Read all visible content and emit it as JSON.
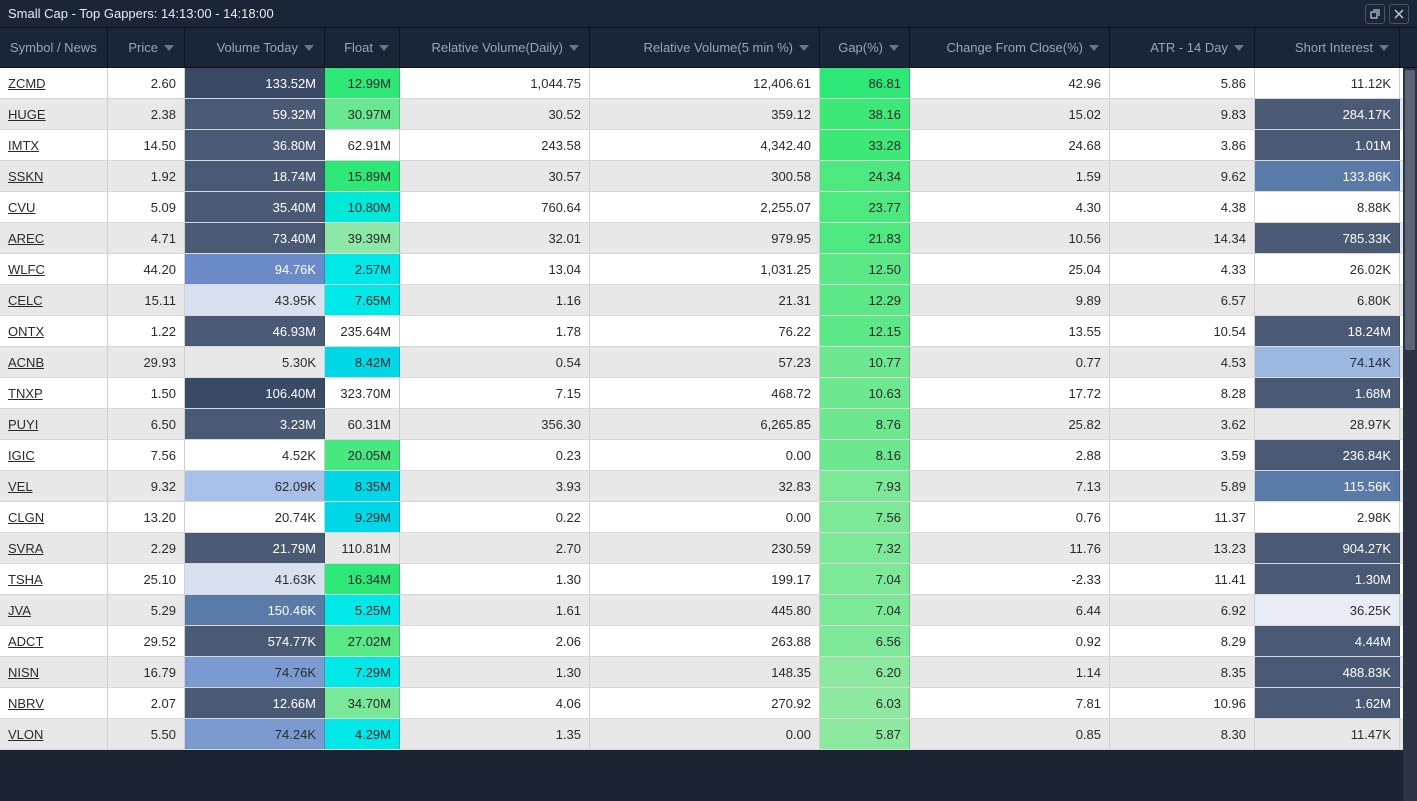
{
  "window": {
    "title": "Small Cap - Top Gappers: 14:13:00 - 14:18:00"
  },
  "columns": [
    {
      "key": "symbol",
      "label": "Symbol / News",
      "class": "col-symbol",
      "sortable": false
    },
    {
      "key": "price",
      "label": "Price",
      "class": "col-price",
      "sortable": true
    },
    {
      "key": "volume",
      "label": "Volume Today",
      "class": "col-volume",
      "sortable": true
    },
    {
      "key": "float",
      "label": "Float",
      "class": "col-float",
      "sortable": true
    },
    {
      "key": "relvol_daily",
      "label": "Relative Volume(Daily)",
      "class": "col-relvol-daily",
      "sortable": true
    },
    {
      "key": "relvol_5min",
      "label": "Relative Volume(5 min %)",
      "class": "col-relvol-5min",
      "sortable": true
    },
    {
      "key": "gap",
      "label": "Gap(%)",
      "class": "col-gap",
      "sortable": true
    },
    {
      "key": "change",
      "label": "Change From Close(%)",
      "class": "col-change",
      "sortable": true
    },
    {
      "key": "atr",
      "label": "ATR - 14 Day",
      "class": "col-atr",
      "sortable": true
    },
    {
      "key": "short",
      "label": "Short Interest",
      "class": "col-short",
      "sortable": true
    }
  ],
  "rows": [
    {
      "symbol": "ZCMD",
      "price": "2.60",
      "volume": "133.52M",
      "volume_bg": "#3a4a64",
      "float": "12.99M",
      "float_bg": "#2de876",
      "relvol_daily": "1,044.75",
      "relvol_5min": "12,406.61",
      "gap": "86.81",
      "gap_bg": "#2de876",
      "change": "42.96",
      "atr": "5.86",
      "short": "11.12K",
      "short_bg": ""
    },
    {
      "symbol": "HUGE",
      "price": "2.38",
      "volume": "59.32M",
      "volume_bg": "#4a5a74",
      "float": "30.97M",
      "float_bg": "#68e890",
      "relvol_daily": "30.52",
      "relvol_5min": "359.12",
      "gap": "38.16",
      "gap_bg": "#3de876",
      "change": "15.02",
      "atr": "9.83",
      "short": "284.17K",
      "short_bg": "#4a5a74"
    },
    {
      "symbol": "IMTX",
      "price": "14.50",
      "volume": "36.80M",
      "volume_bg": "#4a5a74",
      "float": "62.91M",
      "float_bg": "",
      "relvol_daily": "243.58",
      "relvol_5min": "4,342.40",
      "gap": "33.28",
      "gap_bg": "#3de876",
      "change": "24.68",
      "atr": "3.86",
      "short": "1.01M",
      "short_bg": "#4a5a74"
    },
    {
      "symbol": "SSKN",
      "price": "1.92",
      "volume": "18.74M",
      "volume_bg": "#4a5a74",
      "float": "15.89M",
      "float_bg": "#2de876",
      "relvol_daily": "30.57",
      "relvol_5min": "300.58",
      "gap": "24.34",
      "gap_bg": "#4de880",
      "change": "1.59",
      "atr": "9.62",
      "short": "133.86K",
      "short_bg": "#5a7aa8"
    },
    {
      "symbol": "CVU",
      "price": "5.09",
      "volume": "35.40M",
      "volume_bg": "#4a5a74",
      "float": "10.80M",
      "float_bg": "#00e8d8",
      "relvol_daily": "760.64",
      "relvol_5min": "2,255.07",
      "gap": "23.77",
      "gap_bg": "#4de880",
      "change": "4.30",
      "atr": "4.38",
      "short": "8.88K",
      "short_bg": ""
    },
    {
      "symbol": "AREC",
      "price": "4.71",
      "volume": "73.40M",
      "volume_bg": "#4a5a74",
      "float": "39.39M",
      "float_bg": "#8de8a8",
      "relvol_daily": "32.01",
      "relvol_5min": "979.95",
      "gap": "21.83",
      "gap_bg": "#4de880",
      "change": "10.56",
      "atr": "14.34",
      "short": "785.33K",
      "short_bg": "#4a5a74"
    },
    {
      "symbol": "WLFC",
      "price": "44.20",
      "volume": "94.76K",
      "volume_bg": "#6a8ac8",
      "float": "2.57M",
      "float_bg": "#00e8e8",
      "relvol_daily": "13.04",
      "relvol_5min": "1,031.25",
      "gap": "12.50",
      "gap_bg": "#5de888",
      "change": "25.04",
      "atr": "4.33",
      "short": "26.02K",
      "short_bg": ""
    },
    {
      "symbol": "CELC",
      "price": "15.11",
      "volume": "43.95K",
      "volume_bg": "#d8e0f0",
      "float": "7.65M",
      "float_bg": "#00e8e8",
      "relvol_daily": "1.16",
      "relvol_5min": "21.31",
      "gap": "12.29",
      "gap_bg": "#5de888",
      "change": "9.89",
      "atr": "6.57",
      "short": "6.80K",
      "short_bg": ""
    },
    {
      "symbol": "ONTX",
      "price": "1.22",
      "volume": "46.93M",
      "volume_bg": "#4a5a74",
      "float": "235.64M",
      "float_bg": "",
      "relvol_daily": "1.78",
      "relvol_5min": "76.22",
      "gap": "12.15",
      "gap_bg": "#5de888",
      "change": "13.55",
      "atr": "10.54",
      "short": "18.24M",
      "short_bg": "#4a5a74"
    },
    {
      "symbol": "ACNB",
      "price": "29.93",
      "volume": "5.30K",
      "volume_bg": "",
      "float": "8.42M",
      "float_bg": "#00d8e8",
      "relvol_daily": "0.54",
      "relvol_5min": "57.23",
      "gap": "10.77",
      "gap_bg": "#6de890",
      "change": "0.77",
      "atr": "4.53",
      "short": "74.14K",
      "short_bg": "#9ab8e0"
    },
    {
      "symbol": "TNXP",
      "price": "1.50",
      "volume": "106.40M",
      "volume_bg": "#3a4a64",
      "float": "323.70M",
      "float_bg": "",
      "relvol_daily": "7.15",
      "relvol_5min": "468.72",
      "gap": "10.63",
      "gap_bg": "#6de890",
      "change": "17.72",
      "atr": "8.28",
      "short": "1.68M",
      "short_bg": "#4a5a74"
    },
    {
      "symbol": "PUYI",
      "price": "6.50",
      "volume": "3.23M",
      "volume_bg": "#4a5a74",
      "float": "60.31M",
      "float_bg": "",
      "relvol_daily": "356.30",
      "relvol_5min": "6,265.85",
      "gap": "8.76",
      "gap_bg": "#6de890",
      "change": "25.82",
      "atr": "3.62",
      "short": "28.97K",
      "short_bg": ""
    },
    {
      "symbol": "IGIC",
      "price": "7.56",
      "volume": "4.52K",
      "volume_bg": "",
      "float": "20.05M",
      "float_bg": "#48e880",
      "relvol_daily": "0.23",
      "relvol_5min": "0.00",
      "gap": "8.16",
      "gap_bg": "#6de890",
      "change": "2.88",
      "atr": "3.59",
      "short": "236.84K",
      "short_bg": "#4a5a74"
    },
    {
      "symbol": "VEL",
      "price": "9.32",
      "volume": "62.09K",
      "volume_bg": "#a8c0e8",
      "float": "8.35M",
      "float_bg": "#00d8e8",
      "relvol_daily": "3.93",
      "relvol_5min": "32.83",
      "gap": "7.93",
      "gap_bg": "#7de898",
      "change": "7.13",
      "atr": "5.89",
      "short": "115.56K",
      "short_bg": "#5a7aa8"
    },
    {
      "symbol": "CLGN",
      "price": "13.20",
      "volume": "20.74K",
      "volume_bg": "",
      "float": "9.29M",
      "float_bg": "#00d8e8",
      "relvol_daily": "0.22",
      "relvol_5min": "0.00",
      "gap": "7.56",
      "gap_bg": "#7de898",
      "change": "0.76",
      "atr": "11.37",
      "short": "2.98K",
      "short_bg": ""
    },
    {
      "symbol": "SVRA",
      "price": "2.29",
      "volume": "21.79M",
      "volume_bg": "#4a5a74",
      "float": "110.81M",
      "float_bg": "",
      "relvol_daily": "2.70",
      "relvol_5min": "230.59",
      "gap": "7.32",
      "gap_bg": "#7de898",
      "change": "11.76",
      "atr": "13.23",
      "short": "904.27K",
      "short_bg": "#4a5a74"
    },
    {
      "symbol": "TSHA",
      "price": "25.10",
      "volume": "41.63K",
      "volume_bg": "#d8e0f0",
      "float": "16.34M",
      "float_bg": "#2de876",
      "relvol_daily": "1.30",
      "relvol_5min": "199.17",
      "gap": "7.04",
      "gap_bg": "#7de898",
      "change": "-2.33",
      "atr": "11.41",
      "short": "1.30M",
      "short_bg": "#4a5a74"
    },
    {
      "symbol": "JVA",
      "price": "5.29",
      "volume": "150.46K",
      "volume_bg": "#5a7aa8",
      "float": "5.25M",
      "float_bg": "#00e8e8",
      "relvol_daily": "1.61",
      "relvol_5min": "445.80",
      "gap": "7.04",
      "gap_bg": "#7de898",
      "change": "6.44",
      "atr": "6.92",
      "short": "36.25K",
      "short_bg": "#e8ecf4"
    },
    {
      "symbol": "ADCT",
      "price": "29.52",
      "volume": "574.77K",
      "volume_bg": "#4a5a74",
      "float": "27.02M",
      "float_bg": "#58e888",
      "relvol_daily": "2.06",
      "relvol_5min": "263.88",
      "gap": "6.56",
      "gap_bg": "#7de898",
      "change": "0.92",
      "atr": "8.29",
      "short": "4.44M",
      "short_bg": "#4a5a74"
    },
    {
      "symbol": "NISN",
      "price": "16.79",
      "volume": "74.76K",
      "volume_bg": "#7a9ad0",
      "float": "7.29M",
      "float_bg": "#00e8e8",
      "relvol_daily": "1.30",
      "relvol_5min": "148.35",
      "gap": "6.20",
      "gap_bg": "#8de8a0",
      "change": "1.14",
      "atr": "8.35",
      "short": "488.83K",
      "short_bg": "#4a5a74"
    },
    {
      "symbol": "NBRV",
      "price": "2.07",
      "volume": "12.66M",
      "volume_bg": "#4a5a74",
      "float": "34.70M",
      "float_bg": "#78e898",
      "relvol_daily": "4.06",
      "relvol_5min": "270.92",
      "gap": "6.03",
      "gap_bg": "#8de8a0",
      "change": "7.81",
      "atr": "10.96",
      "short": "1.62M",
      "short_bg": "#4a5a74"
    },
    {
      "symbol": "VLON",
      "price": "5.50",
      "volume": "74.24K",
      "volume_bg": "#7a9ad0",
      "float": "4.29M",
      "float_bg": "#00e8e8",
      "relvol_daily": "1.35",
      "relvol_5min": "0.00",
      "gap": "5.87",
      "gap_bg": "#8de8a0",
      "change": "0.85",
      "atr": "8.30",
      "short": "11.47K",
      "short_bg": ""
    }
  ],
  "colors": {
    "light_text_on_dark": "#ffffff",
    "dark_text_on_light": "#2a2a2a"
  }
}
